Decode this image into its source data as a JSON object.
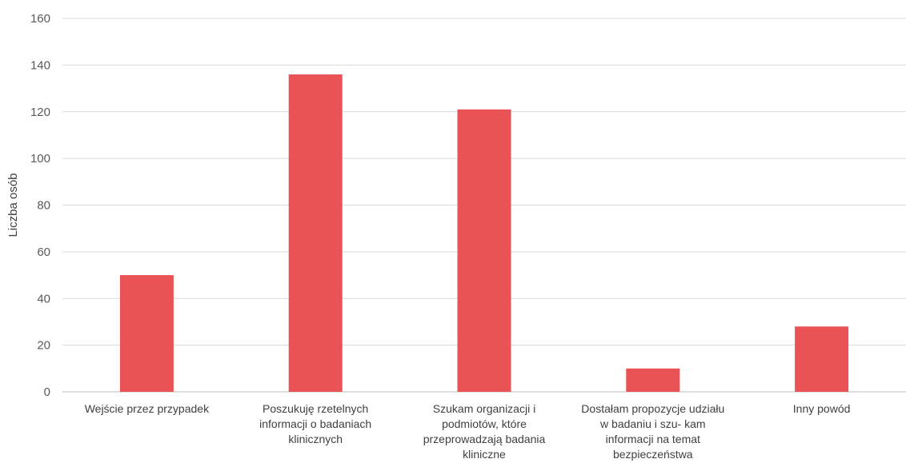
{
  "chart_data": {
    "type": "bar",
    "categories": [
      [
        "Wejście przez przypadek"
      ],
      [
        "Poszukuję rzetelnych",
        "informacji o badaniach",
        "klinicznych"
      ],
      [
        "Szukam organizacji i",
        "podmiotów, które",
        "przeprowadzają badania",
        "kliniczne"
      ],
      [
        "Dostałam propozycje udziału",
        "w badaniu i szu- kam",
        "informacji na temat",
        "bezpieczeństwa"
      ],
      [
        "Inny powód"
      ]
    ],
    "values": [
      50,
      136,
      121,
      10,
      28
    ],
    "ylabel": "Liczba osób",
    "ylim": [
      0,
      160
    ],
    "yticks": [
      0,
      20,
      40,
      60,
      80,
      100,
      120,
      140,
      160
    ],
    "grid": true,
    "colors": {
      "bar": "#e95355",
      "grid": "#d9d9d9",
      "axis": "#bfbfbf"
    }
  }
}
